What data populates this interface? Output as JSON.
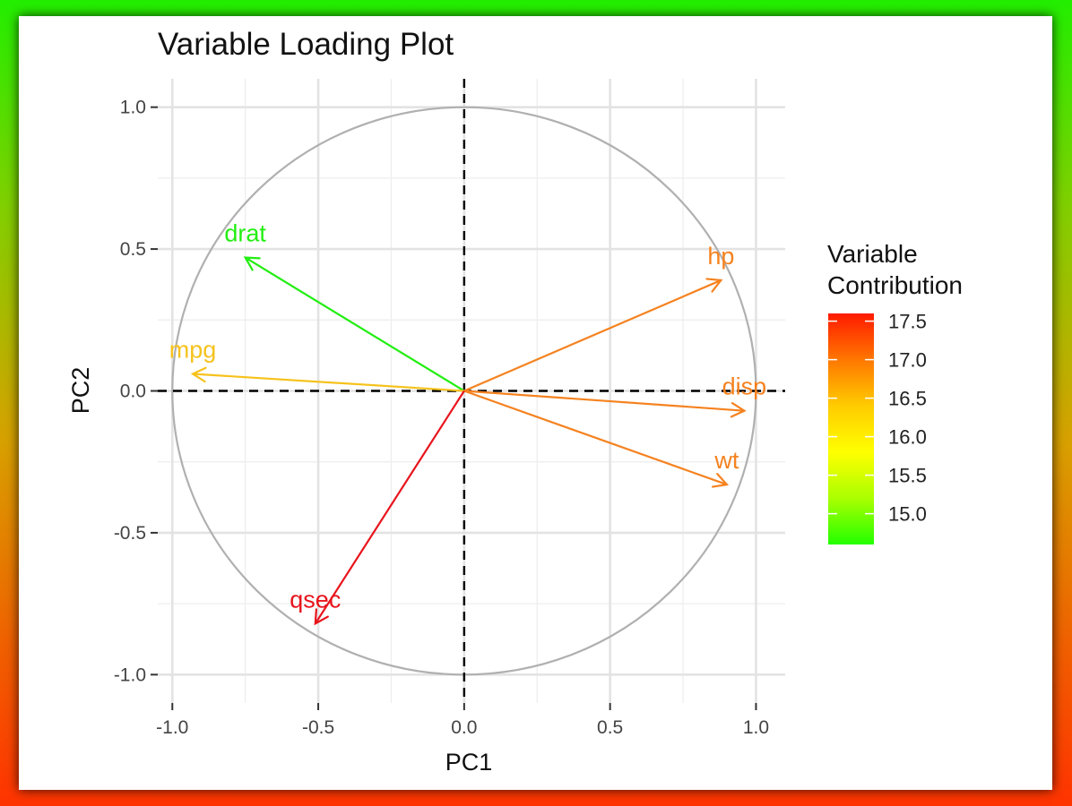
{
  "chart_data": {
    "type": "scatter",
    "subtype": "pca-variable-loading-plot",
    "title": "Variable Loading Plot",
    "xlabel": "PC1",
    "ylabel": "PC2",
    "xlim": [
      -1.05,
      1.1
    ],
    "ylim": [
      -1.1,
      1.1
    ],
    "x_ticks": [
      -1.0,
      -0.5,
      0.0,
      0.5,
      1.0
    ],
    "y_ticks": [
      -1.0,
      -0.5,
      0.0,
      0.5,
      1.0
    ],
    "x_tick_labels": [
      "-1.0",
      "-0.5",
      "0.0",
      "0.5",
      "1.0"
    ],
    "y_tick_labels": [
      "-1.0",
      "-0.5",
      "0.0",
      "0.5",
      "1.0"
    ],
    "grid": true,
    "unit_circle": true,
    "reference_lines": {
      "x": 0,
      "y": 0,
      "style": "dashed"
    },
    "variables": [
      {
        "name": "drat",
        "x": -0.75,
        "y": 0.47,
        "contribution": 14.7,
        "color": "#22ee11"
      },
      {
        "name": "hp",
        "x": 0.88,
        "y": 0.39,
        "contribution": 17.0,
        "color": "#f5821f"
      },
      {
        "name": "mpg",
        "x": -0.93,
        "y": 0.06,
        "contribution": 16.3,
        "color": "#f6c21c"
      },
      {
        "name": "disp",
        "x": 0.96,
        "y": -0.07,
        "contribution": 17.0,
        "color": "#f5821f"
      },
      {
        "name": "wt",
        "x": 0.9,
        "y": -0.33,
        "contribution": 17.0,
        "color": "#f5821f"
      },
      {
        "name": "qsec",
        "x": -0.51,
        "y": -0.82,
        "contribution": 17.6,
        "color": "#e8141c"
      }
    ],
    "legend": {
      "title_lines": [
        "Variable",
        "Contribution"
      ],
      "placement": "right",
      "type": "colorbar",
      "range": [
        14.6,
        17.6
      ],
      "ticks": [
        17.5,
        17.0,
        16.5,
        16.0,
        15.5,
        15.0
      ],
      "tick_labels": [
        "17.5",
        "17.0",
        "16.5",
        "16.0",
        "15.5",
        "15.0"
      ],
      "colors": [
        "#ff1a00",
        "#ff7700",
        "#ffcc00",
        "#ffff00",
        "#aaff00",
        "#22ff00"
      ]
    }
  }
}
